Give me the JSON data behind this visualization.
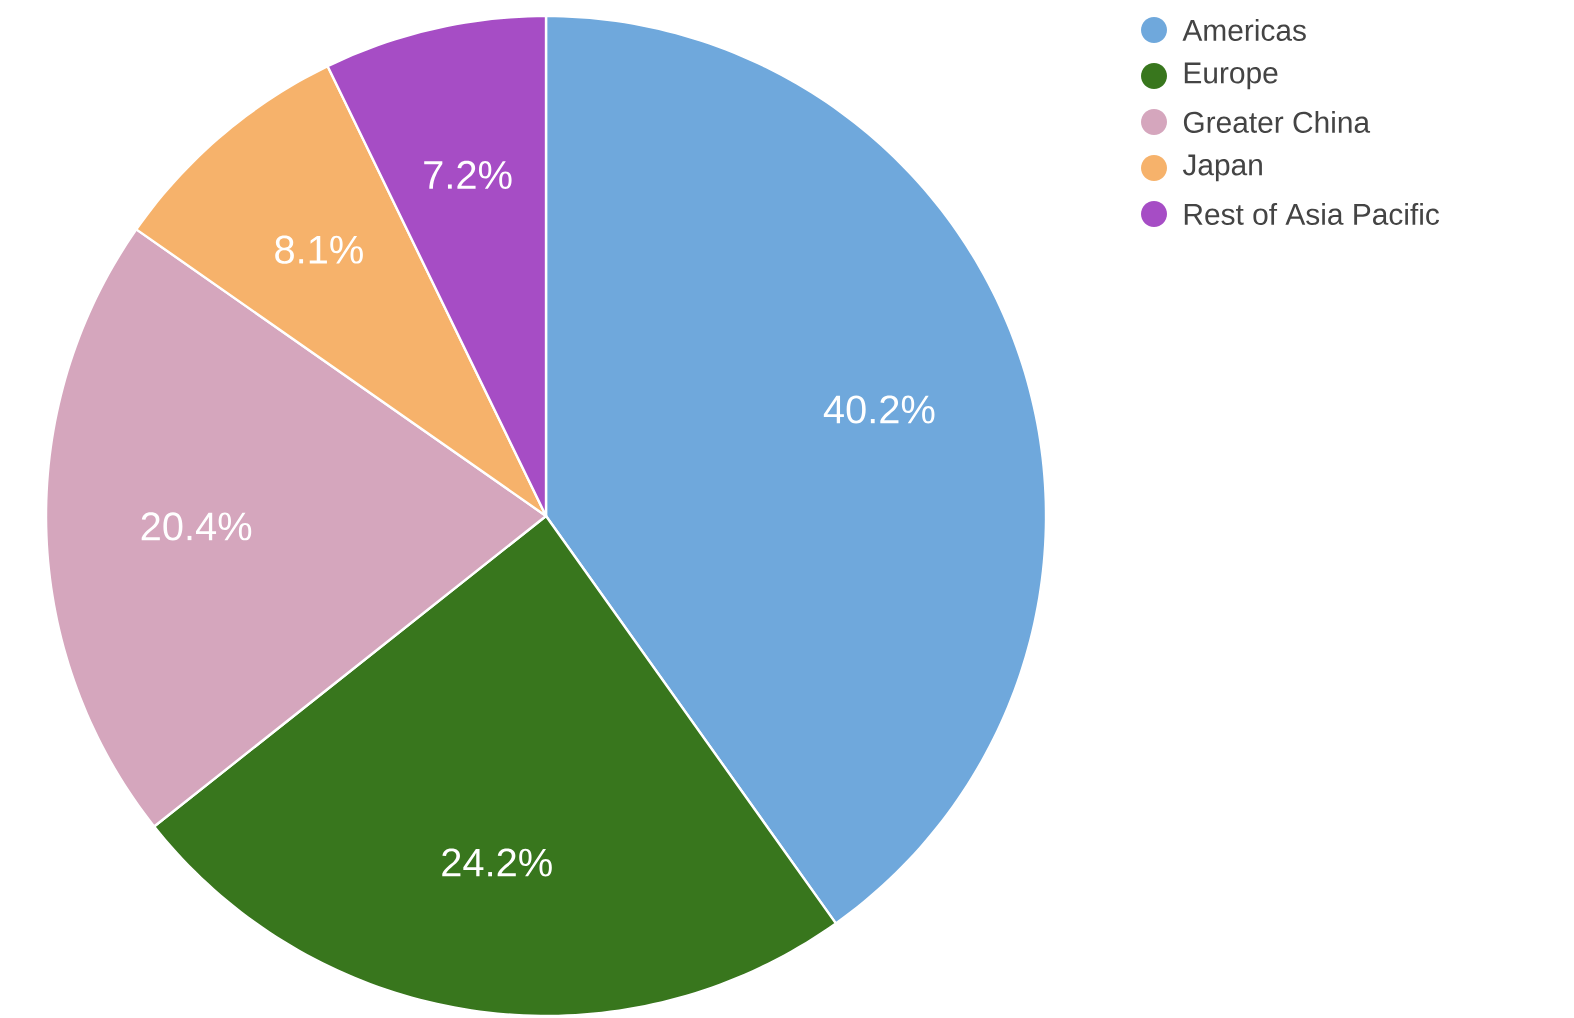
{
  "chart_data": {
    "type": "pie",
    "categories": [
      "Americas",
      "Europe",
      "Greater China",
      "Japan",
      "Rest of Asia Pacific"
    ],
    "values": [
      40.2,
      24.2,
      20.4,
      8.1,
      7.2
    ],
    "value_labels": [
      "40.2%",
      "24.2%",
      "20.4%",
      "8.1%",
      "7.2%"
    ],
    "colors": [
      "#6fa8dc",
      "#38761d",
      "#d5a6bd",
      "#f6b26b",
      "#a64dc5"
    ],
    "legend": "top right"
  }
}
